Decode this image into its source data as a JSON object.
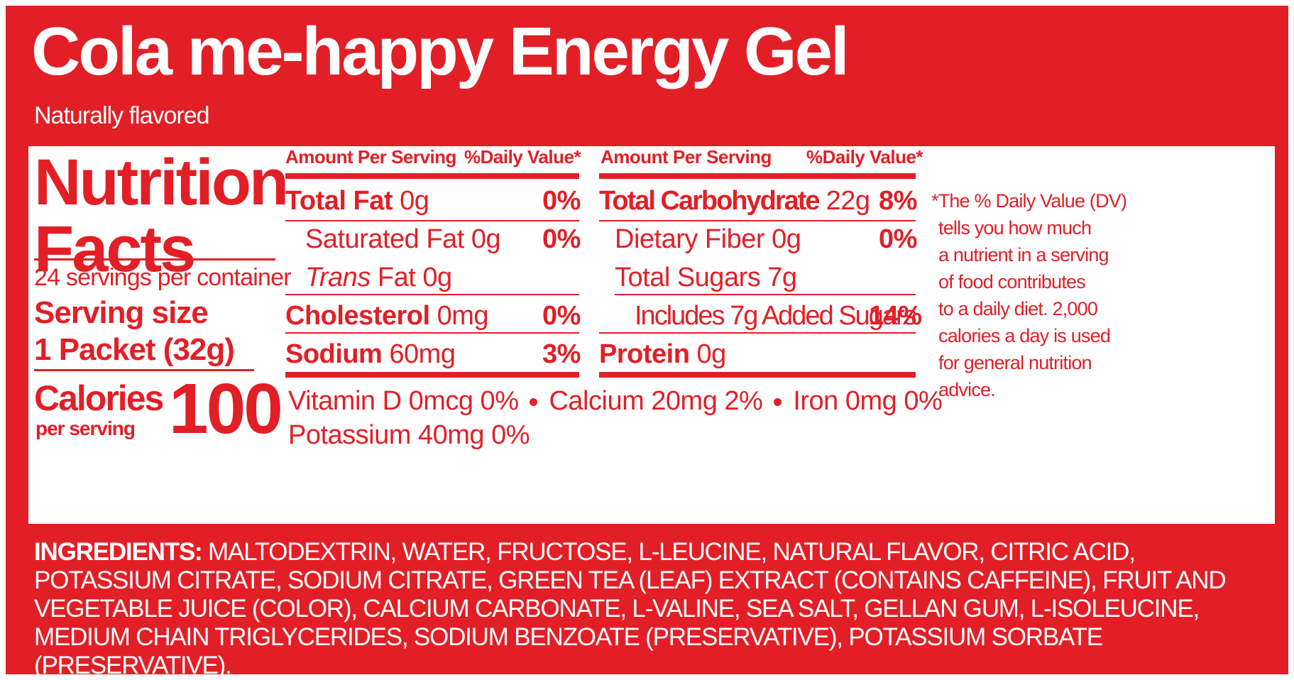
{
  "product": {
    "name": "Cola me-happy Energy Gel",
    "flavor_note": "Naturally flavored"
  },
  "facts": {
    "heading_line1": "Nutrition",
    "heading_line2": "Facts",
    "servings_per_container": "24 servings per container",
    "serving_size_label": "Serving size",
    "serving_size_value": "1 Packet (32g)",
    "calories_label": "Calories",
    "calories_sublabel": "per serving",
    "calories_value": "100"
  },
  "left_table": {
    "header_amount": "Amount Per Serving",
    "header_dv": "%Daily Value*",
    "rows": [
      {
        "name": "Total Fat",
        "amount": "0g",
        "dv": "0%"
      },
      {
        "name": "Saturated Fat",
        "amount": "0g",
        "dv": "0%"
      },
      {
        "name_italic": "Trans",
        "name_rest": "Fat",
        "amount": "0g",
        "dv": ""
      },
      {
        "name": "Cholesterol",
        "amount": "0mg",
        "dv": "0%"
      },
      {
        "name": "Sodium",
        "amount": "60mg",
        "dv": "3%"
      }
    ]
  },
  "right_table": {
    "header_amount": "Amount Per Serving",
    "header_dv": "%Daily Value*",
    "rows": [
      {
        "name": "Total Carbohydrate",
        "amount": "22g",
        "dv": "8%"
      },
      {
        "name": "Dietary Fiber",
        "amount": "0g",
        "dv": "0%"
      },
      {
        "name": "Total Sugars",
        "amount": "7g",
        "dv": ""
      },
      {
        "name": "Includes 7g Added Sugars",
        "amount": "",
        "dv": "14%"
      },
      {
        "name": "Protein",
        "amount": "0g",
        "dv": ""
      }
    ]
  },
  "micronutrients": {
    "vitamin_d": "Vitamin D  0mcg  0%",
    "calcium": "Calcium  20mg 2%",
    "iron": "Iron  0mg  0%",
    "potassium": "Potassium  40mg  0%"
  },
  "footnote": {
    "line1": "*The % Daily Value (DV)",
    "line2": "tells you how much",
    "line3": "a nutrient in a serving",
    "line4": "of food contributes",
    "line5": "to a daily diet. 2,000",
    "line6": "calories a day is used",
    "line7": "for general nutrition",
    "line8": "advice."
  },
  "ingredients": {
    "label": "INGREDIENTS:",
    "text": " MALTODEXTRIN, WATER, FRUCTOSE, L-LEUCINE, NATURAL FLAVOR, CITRIC ACID, POTASSIUM CITRATE, SODIUM CITRATE, GREEN TEA (LEAF) EXTRACT (CONTAINS CAFFEINE), FRUIT AND VEGETABLE JUICE (COLOR), CALCIUM CARBONATE, L-VALINE, SEA SALT, GELLAN GUM, L-ISOLEUCINE, MEDIUM CHAIN TRIGLYCERIDES, SODIUM BENZOATE (PRESERVATIVE), POTASSIUM SORBATE (PRESERVATIVE)."
  },
  "colors": {
    "brand_red": "#e21f26",
    "panel_white": "#ffffff"
  }
}
